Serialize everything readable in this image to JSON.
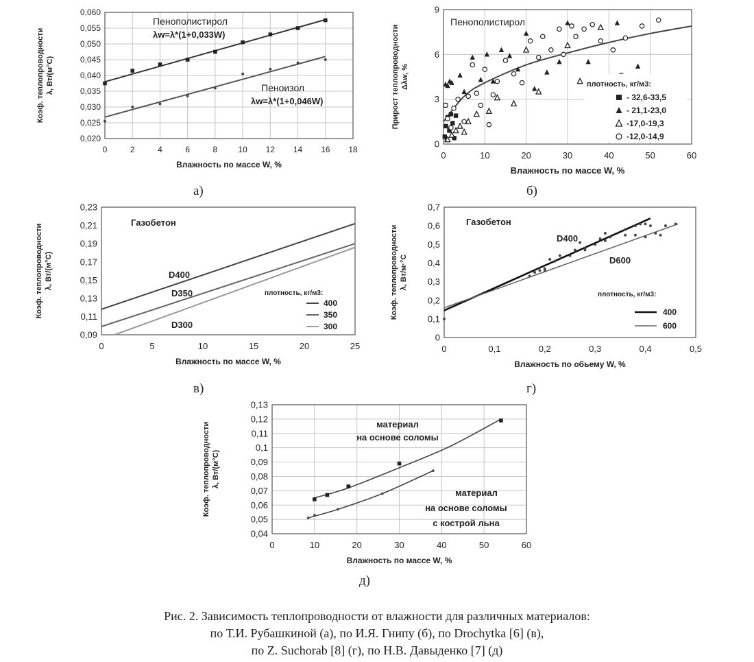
{
  "figure": {
    "caption_lines": [
      "Рис. 2. Зависимость теплопроводности от влажности для различных материалов:",
      "по Т.И. Рубашкиной (а), по И.Я. Гнипу (б), по Drochytka [6] (в),",
      "по Z. Suchorab [8] (г), по Н.В. Давыденко [7] (д)"
    ]
  },
  "chart_data": [
    {
      "id": "a",
      "panel_label": "а)",
      "type": "line",
      "ylabel_lines": [
        "Коэф. теплопроводности",
        "λ, Вт/(м°С)"
      ],
      "xlabel": "Влажность по массе W, %",
      "xlim": [
        0,
        18
      ],
      "ylim": [
        0.02,
        0.06
      ],
      "x_ticks": [
        0,
        2,
        4,
        6,
        8,
        10,
        12,
        14,
        16,
        18
      ],
      "y_ticks": [
        0.02,
        0.025,
        0.03,
        0.035,
        0.04,
        0.045,
        0.05,
        0.055,
        0.06
      ],
      "y_tick_labels": [
        "0,020",
        "0,025",
        "0,030",
        "0,035",
        "0,040",
        "0,045",
        "0,050",
        "0,055",
        "0,060"
      ],
      "grid": true,
      "series": [
        {
          "name": "Пенополистирол",
          "annotation_lines": [
            "Пенополистирол",
            "λw=λ*(1+0,033W)"
          ],
          "points": [
            [
              0,
              0.0375
            ],
            [
              2,
              0.0415
            ],
            [
              4,
              0.0435
            ],
            [
              6,
              0.045
            ],
            [
              8,
              0.0475
            ],
            [
              10,
              0.0505
            ],
            [
              12,
              0.053
            ],
            [
              14,
              0.055
            ],
            [
              16,
              0.0575
            ]
          ],
          "fit": [
            [
              0,
              0.038
            ],
            [
              16,
              0.0577
            ]
          ],
          "marker": "square"
        },
        {
          "name": "Пеноизол",
          "annotation_lines": [
            "Пеноизол",
            "λw=λ*(1+0,046W)"
          ],
          "points": [
            [
              0,
              0.0255
            ],
            [
              2,
              0.03
            ],
            [
              4,
              0.031
            ],
            [
              6,
              0.0335
            ],
            [
              8,
              0.036
            ],
            [
              10,
              0.0405
            ],
            [
              12,
              0.042
            ],
            [
              14,
              0.044
            ],
            [
              16,
              0.045
            ]
          ],
          "fit": [
            [
              0,
              0.0268
            ],
            [
              16,
              0.046
            ]
          ],
          "marker": "dot"
        }
      ]
    },
    {
      "id": "b",
      "panel_label": "б)",
      "type": "scatter",
      "title": "Пенополистирол",
      "ylabel_lines": [
        "Прирост теплопроводности",
        "Δλw, %"
      ],
      "xlabel": "Влажность по массе W, %",
      "xlim": [
        0,
        60
      ],
      "ylim": [
        0,
        9
      ],
      "x_ticks": [
        0,
        10,
        20,
        30,
        40,
        50,
        60
      ],
      "y_ticks": [
        0,
        3,
        6,
        9
      ],
      "grid": true,
      "legend_title": "плотность, кг/м3:",
      "legend_position": "bottom-right",
      "series": [
        {
          "name": "- 32,6-33,5",
          "marker": "square",
          "points": [
            [
              0.3,
              0.5
            ],
            [
              0.6,
              1.2
            ],
            [
              0.8,
              0.3
            ],
            [
              1.0,
              1.8
            ],
            [
              1.4,
              0.9
            ],
            [
              1.8,
              2.0
            ],
            [
              2.2,
              1.4
            ],
            [
              2.6,
              0.4
            ],
            [
              3.0,
              1.9
            ],
            [
              0.5,
              2.6
            ]
          ]
        },
        {
          "name": "- 21,1-23,0",
          "marker": "triangle-filled",
          "points": [
            [
              0.5,
              4.0
            ],
            [
              1.0,
              3.9
            ],
            [
              1.5,
              4.2
            ],
            [
              2.0,
              4.1
            ],
            [
              4.0,
              4.6
            ],
            [
              5.0,
              3.5
            ],
            [
              7.0,
              5.8
            ],
            [
              9.0,
              4.3
            ],
            [
              10.5,
              6.0
            ],
            [
              12.0,
              4.2
            ],
            [
              14.0,
              6.3
            ],
            [
              16.0,
              5.9
            ],
            [
              18.0,
              5.0
            ],
            [
              20.0,
              7.4
            ],
            [
              22.0,
              3.7
            ],
            [
              25.0,
              4.8
            ],
            [
              28.0,
              5.5
            ],
            [
              30.0,
              8.1
            ],
            [
              35.0,
              5.5
            ],
            [
              42.0,
              8.1
            ],
            [
              47.0,
              5.2
            ]
          ]
        },
        {
          "name": "-17,0-19,3",
          "marker": "triangle-open",
          "points": [
            [
              1.0,
              0.3
            ],
            [
              2.0,
              0.6
            ],
            [
              3.0,
              0.9
            ],
            [
              4.0,
              1.2
            ],
            [
              5.0,
              0.8
            ],
            [
              6.0,
              1.5
            ],
            [
              8.0,
              2.0
            ],
            [
              11.0,
              2.2
            ],
            [
              13.0,
              3.1
            ],
            [
              17.0,
              2.7
            ],
            [
              20.0,
              6.3
            ],
            [
              23.0,
              3.5
            ],
            [
              30.0,
              6.6
            ],
            [
              33.0,
              4.2
            ],
            [
              38.0,
              7.8
            ]
          ]
        },
        {
          "name": "-12,0-14,9",
          "marker": "circle-open",
          "points": [
            [
              0.5,
              2.6
            ],
            [
              1.0,
              1.7
            ],
            [
              1.8,
              1.1
            ],
            [
              2.5,
              2.4
            ],
            [
              3.5,
              3.0
            ],
            [
              5.0,
              1.5
            ],
            [
              6.0,
              3.2
            ],
            [
              7.0,
              5.3
            ],
            [
              8.0,
              3.4
            ],
            [
              9.0,
              2.6
            ],
            [
              10.0,
              5.0
            ],
            [
              11.0,
              1.3
            ],
            [
              12.0,
              3.3
            ],
            [
              13.0,
              4.2
            ],
            [
              15.0,
              5.6
            ],
            [
              17.0,
              4.7
            ],
            [
              19.0,
              4.1
            ],
            [
              21.0,
              6.9
            ],
            [
              23.0,
              5.8
            ],
            [
              24.0,
              7.2
            ],
            [
              26.0,
              6.3
            ],
            [
              28.0,
              7.7
            ],
            [
              29.0,
              6.0
            ],
            [
              31.0,
              7.9
            ],
            [
              32.0,
              7.2
            ],
            [
              34.0,
              7.7
            ],
            [
              36.0,
              8.0
            ],
            [
              38.0,
              6.9
            ],
            [
              41.0,
              6.3
            ],
            [
              43.0,
              4.6
            ],
            [
              44.0,
              7.1
            ],
            [
              48.0,
              7.9
            ],
            [
              52.0,
              8.3
            ]
          ]
        }
      ],
      "trend": [
        [
          0,
          1.5
        ],
        [
          5,
          3.2
        ],
        [
          10,
          4.1
        ],
        [
          20,
          5.3
        ],
        [
          30,
          6.1
        ],
        [
          40,
          6.8
        ],
        [
          50,
          7.4
        ],
        [
          60,
          7.9
        ]
      ]
    },
    {
      "id": "c",
      "panel_label": "в)",
      "type": "line",
      "title": "Газобетон",
      "ylabel_lines": [
        "Коэф. теплопроводности",
        "λ, Вт/(м°С)"
      ],
      "xlabel": "Влажность по массе W, %",
      "xlim": [
        0,
        25
      ],
      "ylim": [
        0.09,
        0.23
      ],
      "x_ticks": [
        0,
        5,
        10,
        15,
        20,
        25
      ],
      "y_ticks": [
        0.09,
        0.11,
        0.13,
        0.15,
        0.17,
        0.19,
        0.21,
        0.23
      ],
      "y_tick_labels": [
        "0,09",
        "0,11",
        "0,13",
        "0,15",
        "0,17",
        "0,19",
        "0,21",
        "0,23"
      ],
      "grid": false,
      "legend_title": "плотность, кг/м3:",
      "legend_position": "bottom-right",
      "series": [
        {
          "name": "400",
          "curve_label": "D400",
          "color": "#444444",
          "points": [
            [
              0,
              0.118
            ],
            [
              25,
              0.212
            ]
          ]
        },
        {
          "name": "350",
          "curve_label": "D350",
          "color": "#666666",
          "points": [
            [
              0,
              0.099
            ],
            [
              25,
              0.19
            ]
          ]
        },
        {
          "name": "300",
          "curve_label": "D300",
          "color": "#9a9a9a",
          "points": [
            [
              1.3,
              0.09
            ],
            [
              25,
              0.186
            ]
          ]
        }
      ]
    },
    {
      "id": "d",
      "panel_label": "г)",
      "type": "line",
      "title": "Газобетон",
      "ylabel_lines": [
        "Коэф. теплопроводности",
        "λ, Вт/м·°С"
      ],
      "xlabel": "Влажность по обьему W, %",
      "xlim": [
        0,
        0.5
      ],
      "ylim": [
        0,
        0.7
      ],
      "x_ticks": [
        0,
        0.1,
        0.2,
        0.3,
        0.4,
        0.5
      ],
      "x_tick_labels": [
        "0",
        "0,1",
        "0,2",
        "0,3",
        "0,4",
        "0,5"
      ],
      "y_ticks": [
        0,
        0.1,
        0.2,
        0.3,
        0.4,
        0.5,
        0.6,
        0.7
      ],
      "y_tick_labels": [
        "0",
        "0,1",
        "0,2",
        "0,3",
        "0,4",
        "0,5",
        "0,6",
        "0,7"
      ],
      "grid": false,
      "legend_title": "плотность, кг/м3:",
      "legend_position": "bottom-right",
      "series": [
        {
          "name": "400",
          "curve_label": "D400",
          "color": "#111111",
          "line_width": 2.6,
          "fit": [
            [
              0,
              0.145
            ],
            [
              0.41,
              0.64
            ]
          ],
          "points": [
            [
              0,
              0.1
            ],
            [
              0.17,
              0.33
            ],
            [
              0.19,
              0.36
            ],
            [
              0.2,
              0.37
            ],
            [
              0.21,
              0.42
            ],
            [
              0.22,
              0.41
            ],
            [
              0.23,
              0.44
            ],
            [
              0.26,
              0.47
            ],
            [
              0.27,
              0.51
            ],
            [
              0.28,
              0.48
            ],
            [
              0.3,
              0.5
            ],
            [
              0.31,
              0.53
            ],
            [
              0.32,
              0.56
            ],
            [
              0.33,
              0.54
            ],
            [
              0.36,
              0.58
            ],
            [
              0.38,
              0.6
            ],
            [
              0.39,
              0.61
            ],
            [
              0.4,
              0.61
            ],
            [
              0.41,
              0.6
            ]
          ]
        },
        {
          "name": "600",
          "curve_label": "D600",
          "color": "#666666",
          "line_width": 1.6,
          "fit": [
            [
              0,
              0.16
            ],
            [
              0.465,
              0.61
            ]
          ],
          "points": [
            [
              0.18,
              0.35
            ],
            [
              0.2,
              0.36
            ],
            [
              0.25,
              0.44
            ],
            [
              0.28,
              0.47
            ],
            [
              0.32,
              0.52
            ],
            [
              0.36,
              0.55
            ],
            [
              0.38,
              0.55
            ],
            [
              0.4,
              0.54
            ],
            [
              0.42,
              0.56
            ],
            [
              0.43,
              0.55
            ],
            [
              0.44,
              0.6
            ],
            [
              0.46,
              0.61
            ]
          ]
        }
      ]
    },
    {
      "id": "e",
      "panel_label": "д)",
      "type": "line",
      "ylabel_lines": [
        "Коэф. теплопроводности",
        "λ, Вт/(м°С)"
      ],
      "xlabel": "Влажность по массе W, %",
      "xlim": [
        0,
        60
      ],
      "ylim": [
        0.04,
        0.13
      ],
      "x_ticks": [
        0,
        10,
        20,
        30,
        40,
        50,
        60
      ],
      "y_ticks": [
        0.04,
        0.05,
        0.06,
        0.07,
        0.08,
        0.09,
        0.1,
        0.11,
        0.12,
        0.13
      ],
      "y_tick_labels": [
        "0,04",
        "0,05",
        "0,06",
        "0,07",
        "0,08",
        "0,09",
        "0,1",
        "0,11",
        "0,12",
        "0,13"
      ],
      "grid": true,
      "series": [
        {
          "name": "материал на основе соломы",
          "annotation_lines": [
            "материал",
            "на основе соломы"
          ],
          "points": [
            [
              10,
              0.064
            ],
            [
              13,
              0.067
            ],
            [
              18,
              0.073
            ],
            [
              30,
              0.089
            ],
            [
              54,
              0.119
            ]
          ],
          "curve": [
            [
              10,
              0.065
            ],
            [
              18,
              0.072
            ],
            [
              30,
              0.086
            ],
            [
              42,
              0.101
            ],
            [
              54,
              0.12
            ]
          ]
        },
        {
          "name": "материал на основе соломы с кострой льна",
          "annotation_lines": [
            "материал",
            "на основе соломы",
            "с кострой льна"
          ],
          "points": [
            [
              8.5,
              0.051
            ],
            [
              10,
              0.053
            ],
            [
              15.5,
              0.057
            ],
            [
              26,
              0.068
            ],
            [
              38,
              0.084
            ]
          ],
          "curve": [
            [
              8.5,
              0.051
            ],
            [
              15.5,
              0.057
            ],
            [
              26,
              0.068
            ],
            [
              38,
              0.084
            ]
          ]
        }
      ]
    }
  ]
}
